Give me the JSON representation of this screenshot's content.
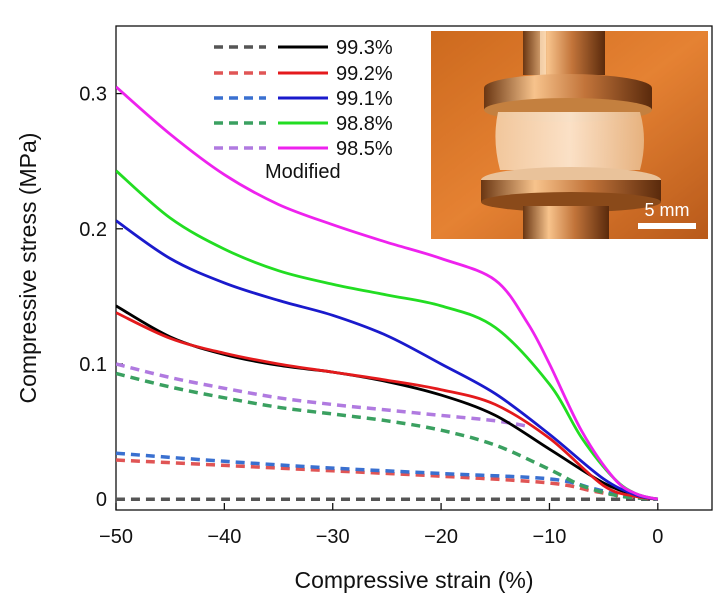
{
  "chart_data": {
    "type": "line",
    "xlabel": "Compressive strain (%)",
    "ylabel": "Compressive stress (MPa)",
    "xlim": [
      -50,
      5
    ],
    "ylim": [
      -0.008,
      0.35
    ],
    "x_ticks": [
      -50,
      -40,
      -30,
      -20,
      -10,
      0
    ],
    "x_tick_labels": [
      "−50",
      "−40",
      "−30",
      "−20",
      "−10",
      "0"
    ],
    "y_ticks": [
      0,
      0.1,
      0.2,
      0.3
    ],
    "y_tick_labels": [
      "0",
      "0.1",
      "0.2",
      "0.3"
    ],
    "legend_modified_label": "Modified",
    "inset": {
      "scale_bar_label": "5 mm"
    },
    "series": [
      {
        "name": "99.3%",
        "color": "#000000",
        "x": [
          -50,
          -45,
          -40,
          -35,
          -30,
          -25,
          -20,
          -15,
          -10,
          -5,
          -2,
          0
        ],
        "y": [
          0.143,
          0.12,
          0.107,
          0.099,
          0.094,
          0.087,
          0.077,
          0.062,
          0.037,
          0.012,
          0.003,
          0
        ]
      },
      {
        "name": "99.2%",
        "color": "#e41a1c",
        "x": [
          -50,
          -45,
          -40,
          -35,
          -30,
          -25,
          -20,
          -15,
          -10,
          -5,
          -2,
          0
        ],
        "y": [
          0.138,
          0.119,
          0.108,
          0.1,
          0.094,
          0.088,
          0.081,
          0.07,
          0.045,
          0.01,
          0.002,
          0
        ]
      },
      {
        "name": "99.1%",
        "color": "#1a1acc",
        "x": [
          -50,
          -45,
          -40,
          -35,
          -30,
          -25,
          -20,
          -15,
          -10,
          -5,
          -2,
          0
        ],
        "y": [
          0.206,
          0.178,
          0.16,
          0.147,
          0.136,
          0.121,
          0.1,
          0.078,
          0.048,
          0.015,
          0.003,
          0
        ]
      },
      {
        "name": "98.8%",
        "color": "#22dd22",
        "x": [
          -50,
          -45,
          -40,
          -35,
          -30,
          -25,
          -20,
          -15,
          -10,
          -7,
          -4,
          -2,
          0
        ],
        "y": [
          0.243,
          0.208,
          0.185,
          0.169,
          0.159,
          0.151,
          0.143,
          0.127,
          0.085,
          0.045,
          0.015,
          0.004,
          0
        ]
      },
      {
        "name": "98.5%",
        "color": "#ee22ee",
        "x": [
          -50,
          -45,
          -40,
          -35,
          -30,
          -25,
          -20,
          -15,
          -12,
          -10,
          -7,
          -4,
          -2,
          0
        ],
        "y": [
          0.305,
          0.27,
          0.24,
          0.218,
          0.203,
          0.19,
          0.178,
          0.162,
          0.13,
          0.1,
          0.05,
          0.015,
          0.004,
          0
        ]
      },
      {
        "name": "99.3% Modified",
        "color": "#555555",
        "dashed": true,
        "x": [
          -50,
          -40,
          -30,
          -20,
          -10,
          0
        ],
        "y": [
          0,
          0,
          0,
          0,
          0,
          0
        ]
      },
      {
        "name": "99.2% Modified",
        "color": "#e05555",
        "dashed": true,
        "x": [
          -50,
          -40,
          -30,
          -20,
          -10,
          -6,
          -3,
          0
        ],
        "y": [
          0.029,
          0.025,
          0.021,
          0.017,
          0.012,
          0.006,
          0.002,
          0
        ]
      },
      {
        "name": "99.1% Modified",
        "color": "#3a70d0",
        "dashed": true,
        "x": [
          -50,
          -40,
          -30,
          -20,
          -10,
          -6,
          -3,
          0
        ],
        "y": [
          0.034,
          0.028,
          0.023,
          0.019,
          0.015,
          0.008,
          0.002,
          0
        ]
      },
      {
        "name": "98.8% Modified",
        "color": "#3aa060",
        "dashed": true,
        "x": [
          -50,
          -45,
          -40,
          -35,
          -30,
          -25,
          -20,
          -15,
          -10,
          -7,
          -4,
          -2,
          0
        ],
        "y": [
          0.093,
          0.083,
          0.075,
          0.068,
          0.063,
          0.058,
          0.051,
          0.04,
          0.022,
          0.01,
          0.003,
          0.001,
          0
        ]
      },
      {
        "name": "98.5% Modified",
        "color": "#b07ae0",
        "dashed": true,
        "x": [
          -50,
          -45,
          -40,
          -35,
          -30,
          -25,
          -20,
          -15,
          -12
        ],
        "y": [
          0.1,
          0.09,
          0.082,
          0.075,
          0.07,
          0.066,
          0.062,
          0.058,
          0.054
        ]
      }
    ]
  }
}
